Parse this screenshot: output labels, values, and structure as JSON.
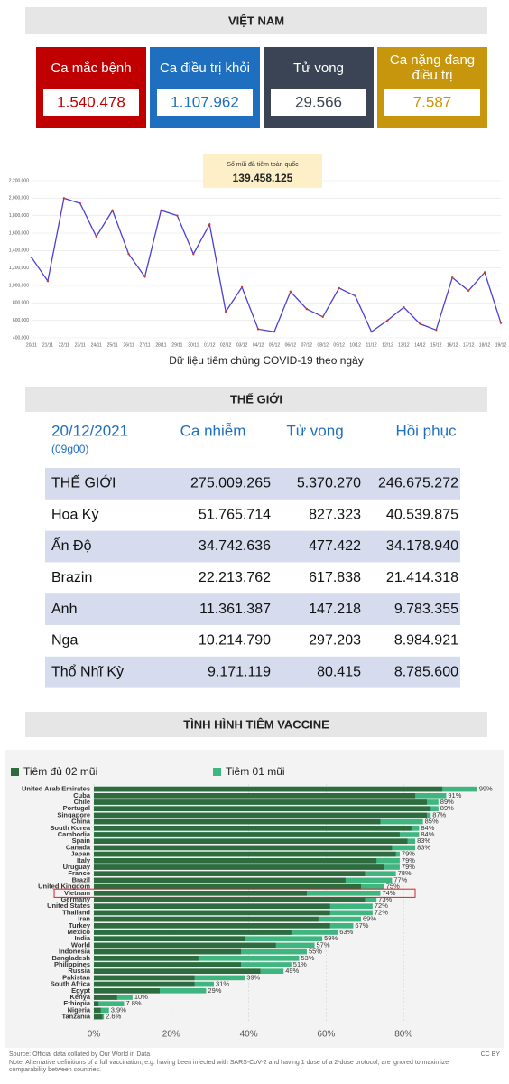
{
  "header": {
    "title": "VIỆT NAM"
  },
  "stats": [
    {
      "label": "Ca mắc bệnh",
      "value": "1.540.478",
      "color": "#c00000"
    },
    {
      "label": "Ca điều trị khỏi",
      "value": "1.107.962",
      "color": "#1f6fc0"
    },
    {
      "label": "Tử vong",
      "value": "29.566",
      "color": "#3a4454"
    },
    {
      "label": "Ca nặng đang điều trị",
      "value": "7.587",
      "color": "#c8960c"
    }
  ],
  "chart_data": [
    {
      "type": "line",
      "annotation": {
        "label": "Số mũi đã tiêm toàn quốc",
        "value": "139.458.125"
      },
      "xlabel": "Dữ liệu tiêm chủng COVID-19 theo ngày",
      "categories": [
        "20/11",
        "21/11",
        "22/11",
        "23/11",
        "24/11",
        "25/11",
        "26/11",
        "27/11",
        "28/11",
        "29/11",
        "30/11",
        "01/12",
        "02/12",
        "03/12",
        "04/12",
        "05/12",
        "06/12",
        "07/12",
        "08/12",
        "09/12",
        "10/12",
        "11/12",
        "12/12",
        "13/12",
        "14/12",
        "15/12",
        "16/12",
        "17/12",
        "18/12",
        "19/12"
      ],
      "values": [
        1320000,
        1050000,
        2000000,
        1940000,
        1560000,
        1860000,
        1360000,
        1100000,
        1860000,
        1800000,
        1360000,
        1700000,
        700000,
        980000,
        500000,
        470000,
        930000,
        730000,
        640000,
        970000,
        880000,
        470000,
        600000,
        750000,
        560000,
        490000,
        1090000,
        940000,
        1150000,
        570000
      ],
      "color": "#4b3fd0",
      "marker_color": "#d9342b",
      "ylim": [
        400000,
        2200000
      ],
      "yticks": [
        {
          "value": 400000,
          "label": "400,000"
        },
        {
          "value": 600000,
          "label": "600,000"
        },
        {
          "value": 800000,
          "label": "800,000"
        },
        {
          "value": 1000000,
          "label": "1,000,000"
        },
        {
          "value": 1200000,
          "label": "1,200,000"
        },
        {
          "value": 1400000,
          "label": "1,400,000"
        },
        {
          "value": 1600000,
          "label": "1,600,000"
        },
        {
          "value": 1800000,
          "label": "1,800,000"
        },
        {
          "value": 2000000,
          "label": "2,000,000"
        },
        {
          "value": 2200000,
          "label": "2,200,000"
        }
      ],
      "grid": true
    },
    {
      "type": "bar",
      "orientation": "horizontal",
      "title": "TÌNH HÌNH TIÊM VACCINE",
      "categories": [
        "United Arab Emirates",
        "Cuba",
        "Chile",
        "Portugal",
        "Singapore",
        "China",
        "South Korea",
        "Cambodia",
        "Spain",
        "Canada",
        "Japan",
        "Italy",
        "Uruguay",
        "France",
        "Brazil",
        "United Kingdom",
        "Vietnam",
        "Germany",
        "United States",
        "Thailand",
        "Iran",
        "Turkey",
        "Mexico",
        "India",
        "World",
        "Indonesia",
        "Bangladesh",
        "Philippines",
        "Russia",
        "Pakistan",
        "South Africa",
        "Egypt",
        "Kenya",
        "Ethiopia",
        "Nigeria",
        "Tanzania"
      ],
      "series": [
        {
          "name": "Tiêm đủ 02 mũi",
          "color": "#2e6b3f",
          "values": [
            90,
            83,
            86,
            87,
            86,
            74,
            82,
            79,
            81,
            77,
            78,
            73,
            75,
            70,
            65,
            69,
            55,
            70,
            61,
            61,
            58,
            61,
            51,
            39,
            47,
            38,
            27,
            38,
            43,
            26,
            26,
            17,
            6,
            1.2,
            1.8,
            2.2
          ]
        },
        {
          "name": "Tiêm 01 mũi",
          "color": "#3fb57f",
          "values": [
            99,
            91,
            89,
            89,
            87,
            85,
            84,
            84,
            83,
            83,
            79,
            79,
            79,
            78,
            77,
            75,
            74,
            73,
            72,
            72,
            69,
            67,
            63,
            59,
            57,
            55,
            53,
            51,
            49,
            39,
            31,
            29,
            10,
            7.8,
            3.9,
            2.6
          ],
          "value_labels": [
            "99%",
            "91%",
            "89%",
            "89%",
            "87%",
            "85%",
            "84%",
            "84%",
            "83%",
            "83%",
            "79%",
            "79%",
            "79%",
            "78%",
            "77%",
            "75%",
            "74%",
            "73%",
            "72%",
            "72%",
            "69%",
            "67%",
            "63%",
            "59%",
            "57%",
            "55%",
            "53%",
            "51%",
            "49%",
            "39%",
            "31%",
            "29%",
            "10%",
            "7.8%",
            "3.9%",
            "2.6%"
          ]
        }
      ],
      "xlim": [
        0,
        100
      ],
      "xticks": [
        {
          "value": 0,
          "label": "0%"
        },
        {
          "value": 20,
          "label": "20%"
        },
        {
          "value": 40,
          "label": "40%"
        },
        {
          "value": 60,
          "label": "60%"
        },
        {
          "value": 80,
          "label": "80%"
        }
      ],
      "source": "Source: Official data collated by Our World in Data",
      "note": "Note: Alternative definitions of a full vaccination, e.g. having been infected with SARS-CoV-2 and having 1 dose of a 2-dose protocol, are ignored to maximize comparability between countries.",
      "license": "CC BY"
    }
  ],
  "world": {
    "title": "THẾ GIỚI",
    "date": "20/12/2021",
    "time": "(09g00)",
    "columns": [
      "Ca nhiễm",
      "Tử vong",
      "Hồi phục"
    ],
    "rows": [
      [
        "THẾ GIỚI",
        "275.009.265",
        "5.370.270",
        "246.675.272"
      ],
      [
        "Hoa Kỳ",
        "51.765.714",
        "827.323",
        "40.539.875"
      ],
      [
        "Ấn Độ",
        "34.742.636",
        "477.422",
        "34.178.940"
      ],
      [
        "Brazin",
        "22.213.762",
        "617.838",
        "21.414.318"
      ],
      [
        "Anh",
        "11.361.387",
        "147.218",
        "9.783.355"
      ],
      [
        "Nga",
        "10.214.790",
        "297.203",
        "8.984.921"
      ],
      [
        "Thổ Nhĩ Kỳ",
        "9.171.119",
        "80.415",
        "8.785.600"
      ]
    ]
  }
}
